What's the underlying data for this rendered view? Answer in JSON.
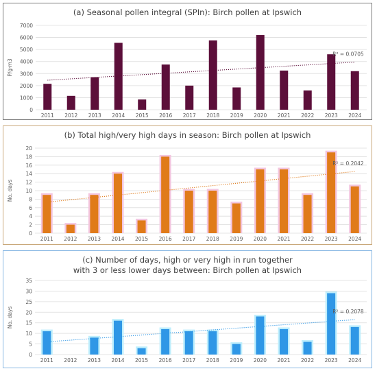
{
  "chart_data": [
    {
      "type": "bar",
      "title": "(a) Seasonal pollen integral (SPIn): Birch pollen at Ipswich",
      "ylabel": "P/g·m3",
      "ylim": [
        0,
        7000
      ],
      "yticks": [
        0,
        1000,
        2000,
        3000,
        4000,
        5000,
        6000,
        7000
      ],
      "categories": [
        "2011",
        "2012",
        "2013",
        "2014",
        "2015",
        "2016",
        "2017",
        "2018",
        "2019",
        "2020",
        "2021",
        "2022",
        "2023",
        "2024"
      ],
      "values": [
        2150,
        1150,
        2700,
        5550,
        850,
        3750,
        2000,
        5750,
        1850,
        6200,
        3250,
        1600,
        4600,
        3200
      ],
      "trendline": {
        "type": "linear",
        "r2_label": "R² = 0.0705",
        "start": 2450,
        "end": 3950
      },
      "colors": {
        "bar": "#5c0f3a",
        "trend": "#5c0f3a"
      },
      "grid": true
    },
    {
      "type": "bar",
      "title": "(b) Total high/very high days in season: Birch pollen at Ipswich",
      "ylabel": "No. days",
      "ylim": [
        0,
        20
      ],
      "yticks": [
        0,
        2,
        4,
        6,
        8,
        10,
        12,
        14,
        16,
        18,
        20
      ],
      "categories": [
        "2011",
        "2012",
        "2013",
        "2014",
        "2015",
        "2016",
        "2017",
        "2018",
        "2019",
        "2020",
        "2021",
        "2022",
        "2023",
        "2024"
      ],
      "values": [
        9,
        2,
        9,
        14,
        3,
        18,
        10,
        10,
        7,
        15,
        15,
        9,
        19,
        11
      ],
      "trendline": {
        "type": "linear",
        "r2_label": "R² = 0.2042",
        "start": 7.3,
        "end": 14.5
      },
      "colors": {
        "bar": "#e07b1a",
        "trend": "#e07b1a"
      },
      "grid": true
    },
    {
      "type": "bar",
      "title": "(c) Number of days, high or very high in run together\nwith 3 or less lower days between: Birch pollen at Ipswich",
      "ylabel": "No. days",
      "ylim": [
        0,
        35
      ],
      "yticks": [
        0,
        5,
        10,
        15,
        20,
        25,
        30,
        35
      ],
      "categories": [
        "2011",
        "2012",
        "2013",
        "2014",
        "2015",
        "2016",
        "2017",
        "2018",
        "2019",
        "2020",
        "2021",
        "2022",
        "2023",
        "2024"
      ],
      "values": [
        11,
        0,
        8,
        16,
        3,
        12,
        11,
        11,
        5,
        18,
        12,
        6,
        29,
        13
      ],
      "trendline": {
        "type": "linear",
        "r2_label": "R² = 0.2078",
        "start": 6.0,
        "end": 16.5
      },
      "colors": {
        "bar": "#2f97e6",
        "trend": "#2f97e6"
      },
      "grid": true
    }
  ]
}
